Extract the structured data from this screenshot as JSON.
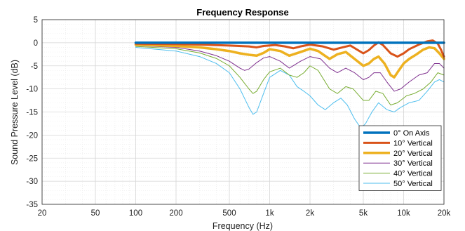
{
  "chart_data": {
    "type": "line",
    "title": "Frequency Response",
    "xlabel": "Frequency (Hz)",
    "ylabel": "Sound Pressure Level (dB)",
    "xscale": "log",
    "xlim": [
      20,
      20000
    ],
    "ylim": [
      -35,
      5
    ],
    "x_ticks": [
      {
        "value": 20,
        "label": "20"
      },
      {
        "value": 50,
        "label": "50"
      },
      {
        "value": 100,
        "label": "100"
      },
      {
        "value": 200,
        "label": "200"
      },
      {
        "value": 500,
        "label": "500"
      },
      {
        "value": 1000,
        "label": "1k"
      },
      {
        "value": 2000,
        "label": "2k"
      },
      {
        "value": 5000,
        "label": "5k"
      },
      {
        "value": 10000,
        "label": "10k"
      },
      {
        "value": 20000,
        "label": "20k"
      }
    ],
    "y_ticks": [
      {
        "value": 5,
        "label": "5"
      },
      {
        "value": 0,
        "label": "0"
      },
      {
        "value": -5,
        "label": "-5"
      },
      {
        "value": -10,
        "label": "-10"
      },
      {
        "value": -15,
        "label": "-15"
      },
      {
        "value": -20,
        "label": "-20"
      },
      {
        "value": -25,
        "label": "-25"
      },
      {
        "value": -30,
        "label": "-30"
      },
      {
        "value": -35,
        "label": "-35"
      }
    ],
    "grid": true,
    "minor_grid": true,
    "legend_position": "bottom-right",
    "series": [
      {
        "name": "0° On Axis",
        "color": "#0072BD",
        "width": 3.5,
        "points": [
          [
            100,
            0
          ],
          [
            200,
            0
          ],
          [
            500,
            0
          ],
          [
            1000,
            0
          ],
          [
            2000,
            0
          ],
          [
            5000,
            0
          ],
          [
            10000,
            0
          ],
          [
            20000,
            0
          ]
        ]
      },
      {
        "name": "10° Vertical",
        "color": "#D95319",
        "width": 3,
        "points": [
          [
            100,
            -0.2
          ],
          [
            200,
            -0.3
          ],
          [
            300,
            -0.4
          ],
          [
            500,
            -0.6
          ],
          [
            700,
            -0.8
          ],
          [
            800,
            -1.0
          ],
          [
            900,
            -0.7
          ],
          [
            1100,
            -0.5
          ],
          [
            1300,
            -0.8
          ],
          [
            1500,
            -1.2
          ],
          [
            1700,
            -0.8
          ],
          [
            2000,
            -0.4
          ],
          [
            2500,
            -0.8
          ],
          [
            3000,
            -1.5
          ],
          [
            3500,
            -1.0
          ],
          [
            4000,
            -0.6
          ],
          [
            4500,
            -1.5
          ],
          [
            5000,
            -2.3
          ],
          [
            5500,
            -1.6
          ],
          [
            6000,
            -0.6
          ],
          [
            6500,
            0.1
          ],
          [
            7000,
            -0.5
          ],
          [
            8000,
            -2.3
          ],
          [
            9000,
            -3.0
          ],
          [
            10000,
            -2.3
          ],
          [
            11000,
            -1.4
          ],
          [
            13000,
            -0.4
          ],
          [
            15000,
            0.3
          ],
          [
            16500,
            0.5
          ],
          [
            18000,
            -0.2
          ],
          [
            19000,
            -1.5
          ],
          [
            20000,
            -3.0
          ]
        ]
      },
      {
        "name": "20° Vertical",
        "color": "#EDB120",
        "width": 3.5,
        "points": [
          [
            100,
            -0.4
          ],
          [
            200,
            -0.7
          ],
          [
            300,
            -1.0
          ],
          [
            400,
            -1.4
          ],
          [
            500,
            -1.8
          ],
          [
            600,
            -2.3
          ],
          [
            700,
            -2.6
          ],
          [
            800,
            -2.8
          ],
          [
            900,
            -2.2
          ],
          [
            1000,
            -1.4
          ],
          [
            1200,
            -1.8
          ],
          [
            1400,
            -2.8
          ],
          [
            1700,
            -2.0
          ],
          [
            2000,
            -1.3
          ],
          [
            2300,
            -1.8
          ],
          [
            2800,
            -3.5
          ],
          [
            3200,
            -2.5
          ],
          [
            3700,
            -2.0
          ],
          [
            4300,
            -3.5
          ],
          [
            5000,
            -5.0
          ],
          [
            5500,
            -4.5
          ],
          [
            6000,
            -3.5
          ],
          [
            6500,
            -3.0
          ],
          [
            7200,
            -4.5
          ],
          [
            8000,
            -7.0
          ],
          [
            8500,
            -7.5
          ],
          [
            9200,
            -6.0
          ],
          [
            10000,
            -4.5
          ],
          [
            11000,
            -3.5
          ],
          [
            12500,
            -2.5
          ],
          [
            14000,
            -1.5
          ],
          [
            15500,
            -1.0
          ],
          [
            17000,
            -1.2
          ],
          [
            18500,
            -2.3
          ],
          [
            20000,
            -3.5
          ]
        ]
      },
      {
        "name": "30° Vertical",
        "color": "#7E2F8E",
        "width": 1,
        "points": [
          [
            100,
            -0.6
          ],
          [
            200,
            -1.0
          ],
          [
            300,
            -1.8
          ],
          [
            400,
            -2.8
          ],
          [
            500,
            -4.0
          ],
          [
            600,
            -5.5
          ],
          [
            650,
            -6.0
          ],
          [
            700,
            -5.7
          ],
          [
            800,
            -4.3
          ],
          [
            900,
            -3.3
          ],
          [
            1000,
            -3.0
          ],
          [
            1200,
            -4.0
          ],
          [
            1400,
            -5.5
          ],
          [
            1700,
            -4.0
          ],
          [
            2000,
            -3.0
          ],
          [
            2400,
            -3.5
          ],
          [
            2800,
            -5.5
          ],
          [
            3200,
            -6.5
          ],
          [
            3700,
            -5.5
          ],
          [
            4300,
            -6.5
          ],
          [
            5000,
            -8.0
          ],
          [
            5500,
            -7.5
          ],
          [
            6000,
            -6.5
          ],
          [
            6700,
            -6.5
          ],
          [
            7500,
            -8.5
          ],
          [
            8500,
            -10.5
          ],
          [
            9500,
            -10.0
          ],
          [
            11000,
            -8.5
          ],
          [
            13000,
            -7.0
          ],
          [
            15000,
            -6.5
          ],
          [
            17000,
            -4.5
          ],
          [
            18500,
            -4.5
          ],
          [
            20000,
            -5.5
          ]
        ]
      },
      {
        "name": "40° Vertical",
        "color": "#77AC30",
        "width": 1,
        "points": [
          [
            100,
            -0.8
          ],
          [
            200,
            -1.3
          ],
          [
            300,
            -2.2
          ],
          [
            400,
            -3.4
          ],
          [
            500,
            -5.0
          ],
          [
            600,
            -7.5
          ],
          [
            700,
            -10.0
          ],
          [
            750,
            -11.0
          ],
          [
            800,
            -10.5
          ],
          [
            900,
            -8.0
          ],
          [
            1000,
            -6.3
          ],
          [
            1200,
            -5.5
          ],
          [
            1400,
            -7.0
          ],
          [
            1600,
            -7.5
          ],
          [
            1800,
            -6.5
          ],
          [
            2000,
            -5.0
          ],
          [
            2300,
            -6.0
          ],
          [
            2800,
            -10.0
          ],
          [
            3200,
            -11.0
          ],
          [
            3700,
            -9.5
          ],
          [
            4200,
            -10.0
          ],
          [
            5000,
            -12.5
          ],
          [
            5500,
            -12.5
          ],
          [
            6200,
            -10.5
          ],
          [
            7000,
            -11.0
          ],
          [
            8000,
            -13.5
          ],
          [
            9000,
            -13.0
          ],
          [
            10500,
            -11.5
          ],
          [
            12000,
            -11.0
          ],
          [
            14000,
            -10.0
          ],
          [
            16000,
            -8.5
          ],
          [
            18000,
            -6.5
          ],
          [
            20000,
            -7.0
          ]
        ]
      },
      {
        "name": "50° Vertical",
        "color": "#4DBEEE",
        "width": 1,
        "points": [
          [
            100,
            -1.0
          ],
          [
            200,
            -1.8
          ],
          [
            300,
            -3.0
          ],
          [
            400,
            -4.5
          ],
          [
            500,
            -6.5
          ],
          [
            600,
            -10.0
          ],
          [
            700,
            -14.0
          ],
          [
            750,
            -15.5
          ],
          [
            800,
            -15.0
          ],
          [
            900,
            -11.0
          ],
          [
            1000,
            -7.5
          ],
          [
            1200,
            -6.0
          ],
          [
            1400,
            -7.0
          ],
          [
            1600,
            -9.5
          ],
          [
            1800,
            -10.5
          ],
          [
            2000,
            -11.5
          ],
          [
            2300,
            -13.5
          ],
          [
            2600,
            -14.5
          ],
          [
            3000,
            -13.0
          ],
          [
            3400,
            -12.0
          ],
          [
            3800,
            -13.5
          ],
          [
            4300,
            -16.5
          ],
          [
            4800,
            -18.5
          ],
          [
            5200,
            -17.5
          ],
          [
            5800,
            -15.0
          ],
          [
            6500,
            -13.0
          ],
          [
            7500,
            -14.5
          ],
          [
            8500,
            -15.0
          ],
          [
            9500,
            -14.0
          ],
          [
            11000,
            -13.0
          ],
          [
            13000,
            -12.5
          ],
          [
            15000,
            -10.5
          ],
          [
            17000,
            -8.5
          ],
          [
            18500,
            -8.0
          ],
          [
            20000,
            -8.5
          ]
        ]
      }
    ]
  }
}
